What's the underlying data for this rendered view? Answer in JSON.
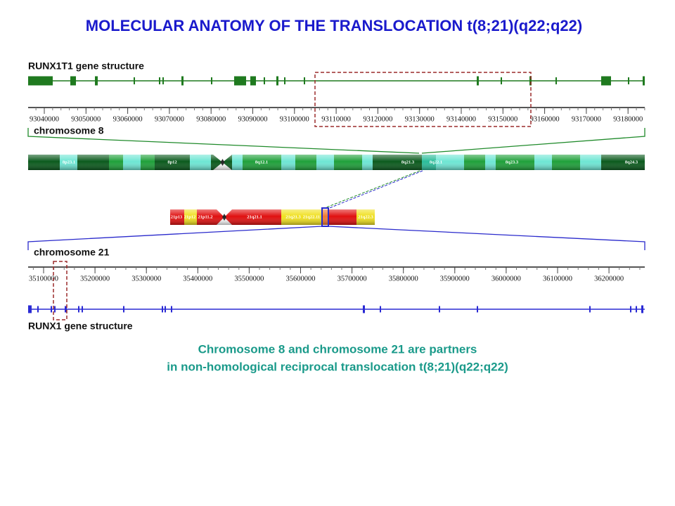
{
  "title": "MOLECULAR ANATOMY OF THE TRANSLOCATION t(8;21)(q22;q22)",
  "runx1t1": {
    "label": "RUNX1T1 gene structure",
    "ticks": [
      93040000,
      93050000,
      93060000,
      93070000,
      93080000,
      93090000,
      93100000,
      93110000,
      93120000,
      93130000,
      93140000,
      93150000,
      93160000,
      93170000,
      93180000
    ]
  },
  "chr8": {
    "label": "chromosome 8",
    "bands": [
      "8p23.1",
      "8p12",
      "8q12.1",
      "8q21.3",
      "8q22.1",
      "8q23.3",
      "8q24.3"
    ]
  },
  "chr21": {
    "label": "chromosome 21",
    "bands": [
      "21p13",
      "21p12",
      "21p11.2",
      "21q21.1",
      "21q21.3",
      "21q22.11",
      "21q22.3"
    ]
  },
  "runx1": {
    "label": "RUNX1 gene structure",
    "ticks": [
      35100000,
      35200000,
      35300000,
      35400000,
      35500000,
      35600000,
      35700000,
      35800000,
      35900000,
      36000000,
      36100000,
      36200000
    ]
  },
  "caption": [
    "Chromosome 8 and chromosome 21 are partners",
    "in non-homological reciprocal translocation t(8;21)(q22;q22)"
  ]
}
